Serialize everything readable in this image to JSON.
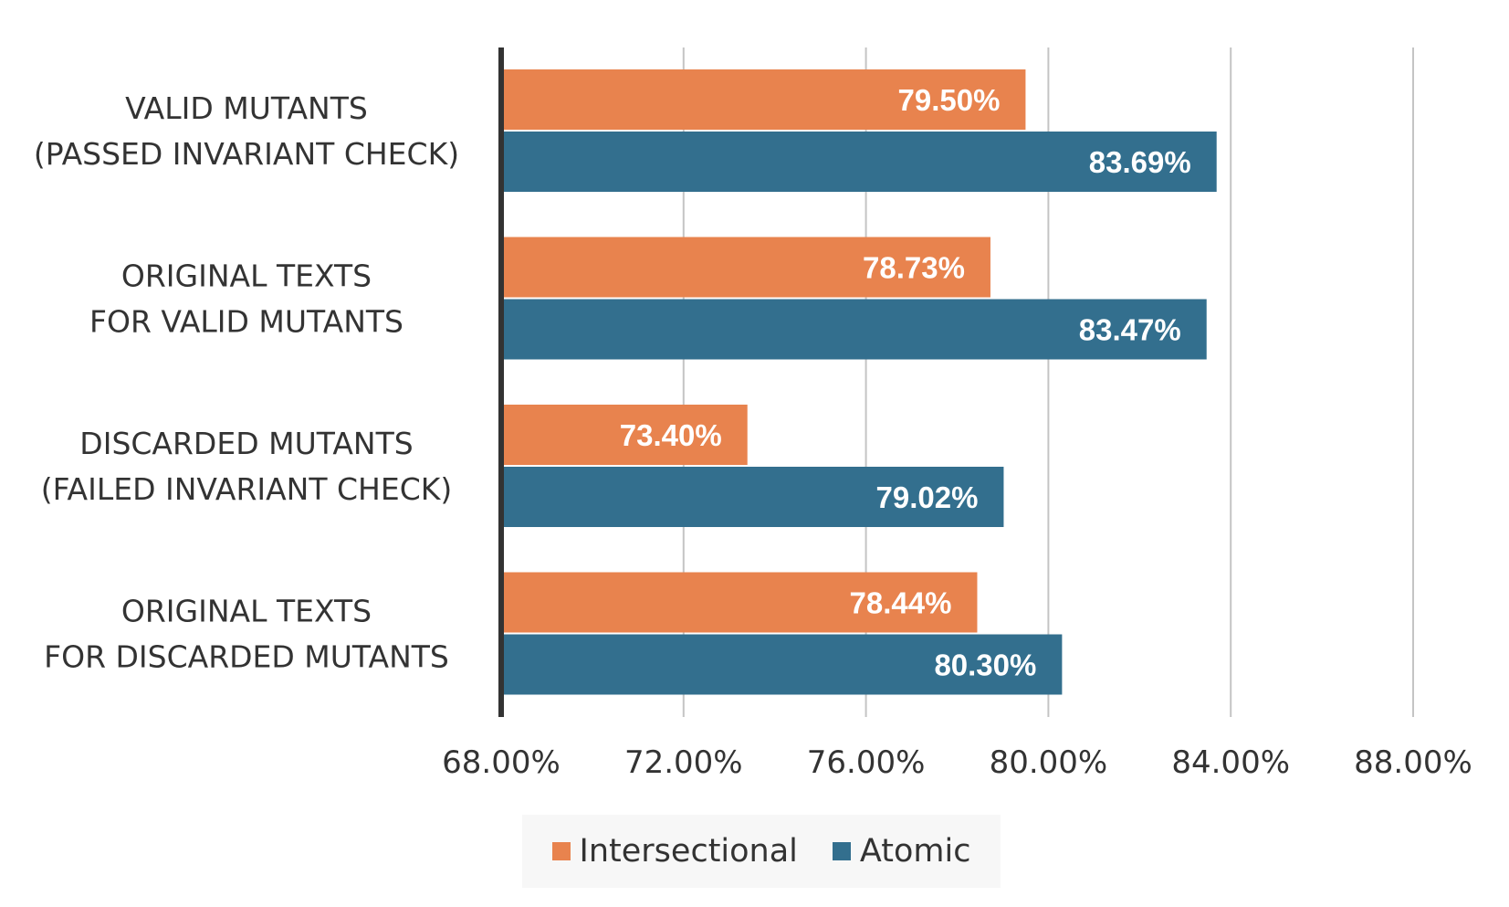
{
  "chart_data": {
    "type": "bar",
    "orientation": "horizontal",
    "categories": [
      [
        "VALID MUTANTS",
        "(PASSED INVARIANT CHECK)"
      ],
      [
        "ORIGINAL TEXTS",
        "FOR VALID MUTANTS"
      ],
      [
        "DISCARDED MUTANTS",
        "(FAILED INVARIANT CHECK)"
      ],
      [
        "ORIGINAL TEXTS",
        "FOR DISCARDED MUTANTS"
      ]
    ],
    "series": [
      {
        "name": "Intersectional",
        "color": "#e8834e",
        "values": [
          79.5,
          78.73,
          73.4,
          78.44
        ],
        "labels": [
          "79.50%",
          "78.73%",
          "73.40%",
          "78.44%"
        ]
      },
      {
        "name": "Atomic",
        "color": "#336f8e",
        "values": [
          83.69,
          83.47,
          79.02,
          80.3
        ],
        "labels": [
          "83.69%",
          "83.47%",
          "79.02%",
          "80.30%"
        ]
      }
    ],
    "xlim": [
      68,
      88
    ],
    "ticks": [
      68,
      72,
      76,
      80,
      84,
      88
    ],
    "tick_labels": [
      "68.00%",
      "72.00%",
      "76.00%",
      "80.00%",
      "84.00%",
      "88.00%"
    ],
    "grid": "vertical",
    "legend_position": "bottom",
    "title": "",
    "xlabel": "",
    "ylabel": ""
  }
}
